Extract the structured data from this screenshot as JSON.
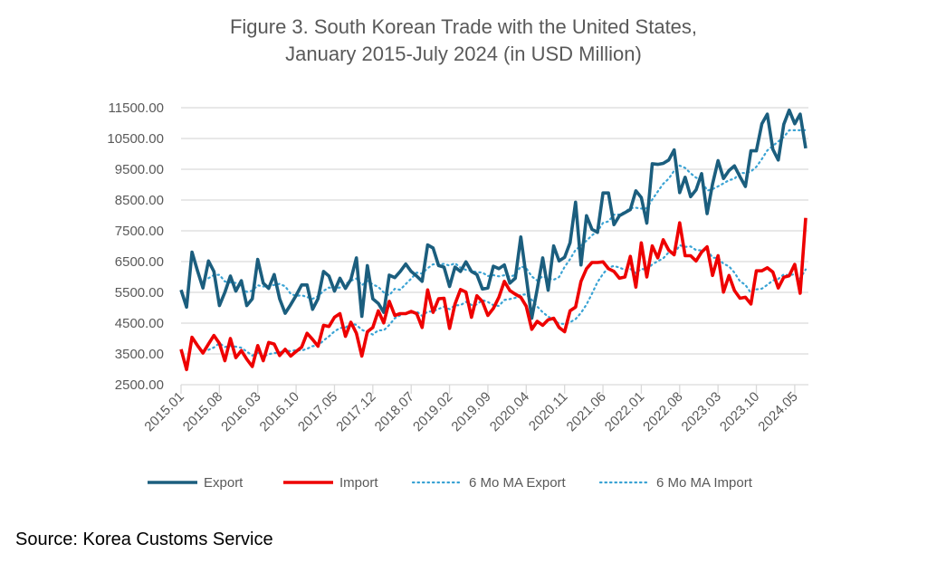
{
  "chart_data": {
    "type": "line",
    "title_line1": "Figure 3. South Korean Trade with the United States,",
    "title_line2": "January 2015-July 2024 (in USD Million)",
    "xlabel": "",
    "ylabel": "",
    "x_start": "2015.01",
    "x_end": "2024.07",
    "x_tick_labels": [
      "2015.01",
      "2015.08",
      "2016.03",
      "2016.10",
      "2017.05",
      "2017.12",
      "2018.07",
      "2019.02",
      "2019.09",
      "2020.04",
      "2020.11",
      "2021.06",
      "2022.01",
      "2022.08",
      "2023.03",
      "2023.10",
      "2024.05"
    ],
    "y_tick_labels": [
      "2500.00",
      "3500.00",
      "4500.00",
      "5500.00",
      "6500.00",
      "7500.00",
      "8500.00",
      "9500.00",
      "10500.00",
      "11500.00"
    ],
    "ylim": [
      2500,
      11500
    ],
    "grid": "horizontal",
    "legend_position": "bottom",
    "moving_average_period": 6,
    "series": [
      {
        "name": "Export",
        "color": "#1b5e7e",
        "style": "solid",
        "values": [
          5580,
          5020,
          6810,
          6200,
          5640,
          6520,
          6180,
          5070,
          5500,
          6030,
          5540,
          5880,
          5070,
          5290,
          6570,
          5800,
          5630,
          6080,
          5290,
          4820,
          5100,
          5400,
          5740,
          5740,
          4950,
          5290,
          6180,
          6030,
          5540,
          5960,
          5630,
          5920,
          6620,
          4720,
          6370,
          5290,
          5140,
          4850,
          6060,
          5980,
          6180,
          6420,
          6180,
          6030,
          5860,
          7040,
          6940,
          6370,
          6320,
          5690,
          6320,
          6180,
          6490,
          6180,
          6080,
          5610,
          5640,
          6350,
          6270,
          6390,
          5800,
          5960,
          7300,
          6000,
          4660,
          5600,
          6620,
          5570,
          7010,
          6520,
          6640,
          7110,
          8430,
          6390,
          7990,
          7550,
          7450,
          8730,
          8730,
          7700,
          7990,
          8090,
          8190,
          8800,
          8580,
          7750,
          9680,
          9660,
          9690,
          9800,
          10130,
          8740,
          9240,
          8610,
          8830,
          9360,
          8060,
          9020,
          9780,
          9200,
          9460,
          9610,
          9260,
          8940,
          10100,
          10100,
          10980,
          11290,
          10150,
          9800,
          10960,
          11420,
          10980,
          11290,
          10180
        ]
      },
      {
        "name": "Import",
        "color": "#ee0000",
        "style": "solid",
        "values": [
          3650,
          2990,
          4040,
          3770,
          3530,
          3820,
          4100,
          3840,
          3280,
          4000,
          3380,
          3610,
          3330,
          3090,
          3770,
          3280,
          3870,
          3820,
          3450,
          3650,
          3430,
          3580,
          3720,
          4170,
          3970,
          3750,
          4430,
          4390,
          4690,
          4810,
          4070,
          4530,
          4170,
          3430,
          4220,
          4360,
          4900,
          4510,
          5210,
          4750,
          4810,
          4810,
          4880,
          4810,
          4360,
          5580,
          4850,
          5290,
          5310,
          4330,
          5120,
          5590,
          5510,
          4690,
          5390,
          5200,
          4750,
          4980,
          5340,
          5860,
          5560,
          5440,
          5340,
          5050,
          4300,
          4560,
          4430,
          4610,
          4660,
          4360,
          4220,
          4900,
          5020,
          5860,
          6270,
          6470,
          6470,
          6490,
          6270,
          6180,
          5960,
          6000,
          6670,
          5670,
          7110,
          6000,
          7010,
          6620,
          7210,
          6870,
          6720,
          7760,
          6690,
          6690,
          6520,
          6810,
          6980,
          6050,
          6690,
          5510,
          6050,
          5560,
          5310,
          5340,
          5120,
          6200,
          6200,
          6300,
          6160,
          5640,
          5990,
          6040,
          6410,
          5470,
          7920
        ]
      }
    ],
    "moving_average_series": [
      {
        "name": "6 Mo MA Export",
        "of": "Export",
        "color": "#3aa3d4",
        "style": "dotted"
      },
      {
        "name": "6 Mo MA Import",
        "of": "Import",
        "color": "#3aa3d4",
        "style": "dotted"
      }
    ]
  },
  "source": "Source: Korea Customs Service"
}
